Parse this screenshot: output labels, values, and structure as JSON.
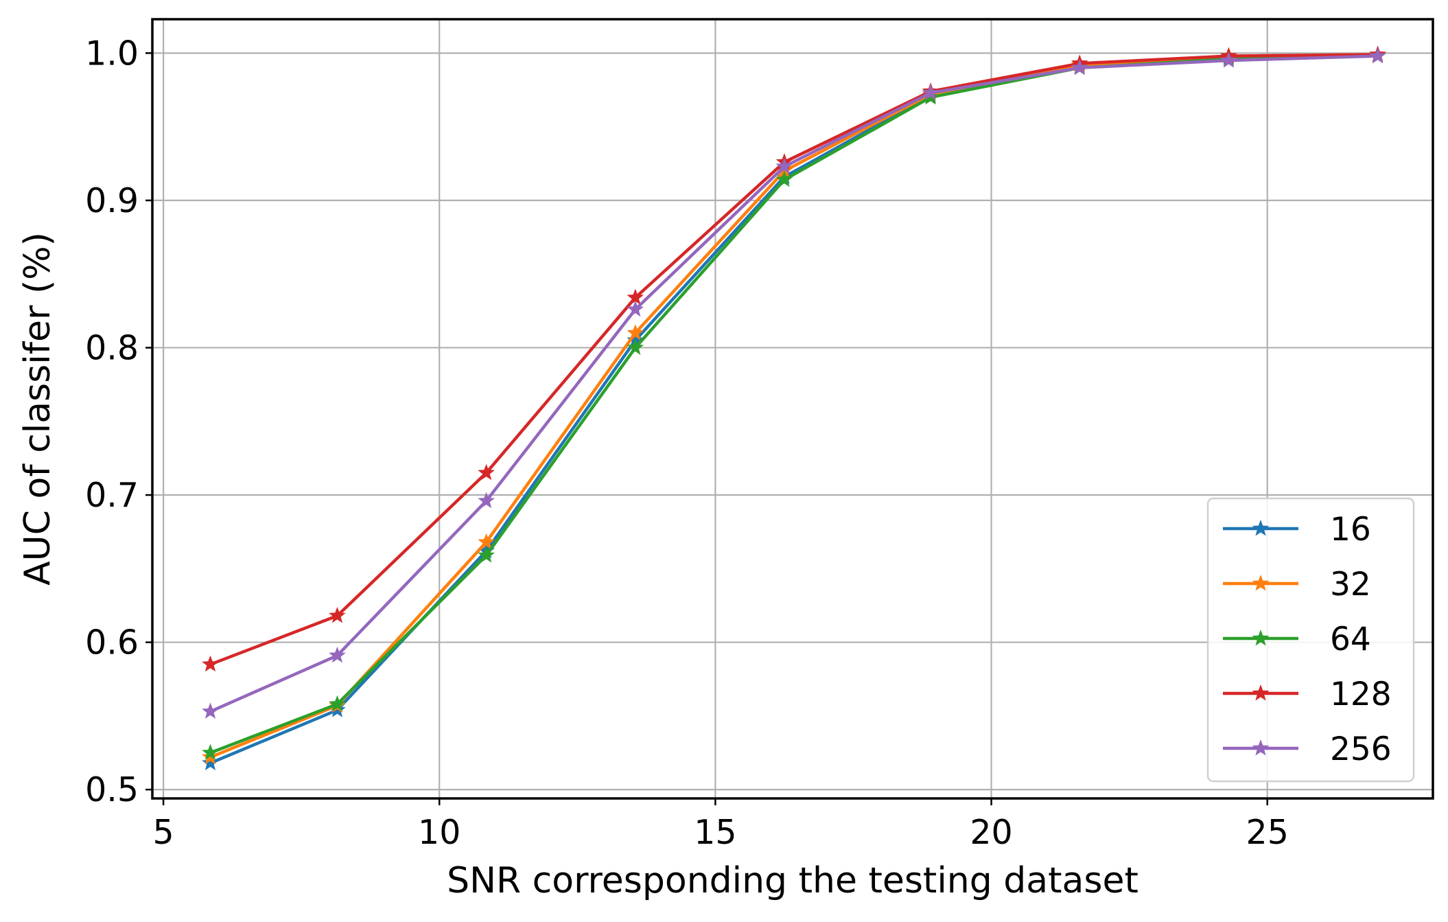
{
  "chart_data": {
    "type": "line",
    "xlabel": "SNR corresponding the testing dataset",
    "ylabel": "AUC of classifer (%)",
    "xlim": [
      4.8,
      28.0
    ],
    "ylim": [
      0.494,
      1.023
    ],
    "xticks": [
      5,
      10,
      15,
      20,
      25
    ],
    "yticks": [
      0.5,
      0.6,
      0.7,
      0.8,
      0.9,
      1.0
    ],
    "xtick_labels": [
      "5",
      "10",
      "15",
      "20",
      "25"
    ],
    "ytick_labels": [
      "0.5",
      "0.6",
      "0.7",
      "0.8",
      "0.9",
      "1.0"
    ],
    "grid": true,
    "legend_position": "lower right",
    "marker": "star",
    "x": [
      5.85,
      8.15,
      10.85,
      13.55,
      16.25,
      18.9,
      21.6,
      24.3,
      27.0
    ],
    "series": [
      {
        "name": "16",
        "color": "#1f77b4",
        "values": [
          0.518,
          0.554,
          0.662,
          0.805,
          0.916,
          0.971,
          0.991,
          0.997,
          0.999
        ]
      },
      {
        "name": "32",
        "color": "#ff7f0e",
        "values": [
          0.522,
          0.557,
          0.668,
          0.81,
          0.92,
          0.972,
          0.992,
          0.998,
          0.999
        ]
      },
      {
        "name": "64",
        "color": "#2ca02c",
        "values": [
          0.525,
          0.558,
          0.659,
          0.8,
          0.914,
          0.97,
          0.99,
          0.996,
          0.998
        ]
      },
      {
        "name": "128",
        "color": "#d62728",
        "values": [
          0.585,
          0.618,
          0.715,
          0.834,
          0.926,
          0.974,
          0.993,
          0.998,
          0.999
        ]
      },
      {
        "name": "256",
        "color": "#9467bd",
        "values": [
          0.553,
          0.591,
          0.696,
          0.826,
          0.923,
          0.973,
          0.99,
          0.995,
          0.998
        ]
      }
    ]
  }
}
